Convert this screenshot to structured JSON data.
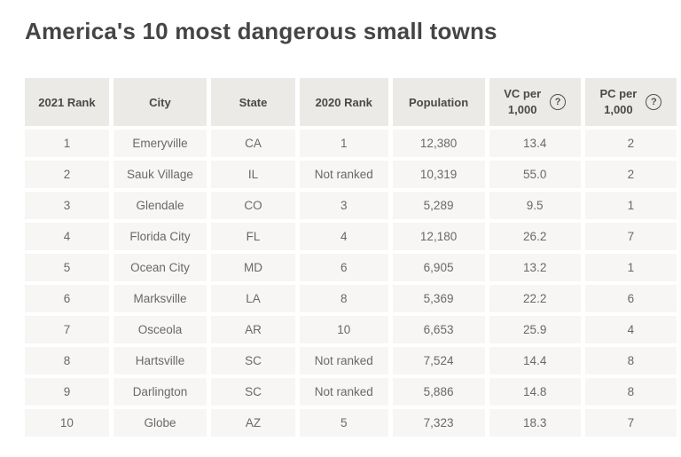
{
  "title": "America's 10 most dangerous small towns",
  "colors": {
    "page_bg": "#ffffff",
    "header_cell_bg": "#eceae7",
    "body_cell_bg": "#f7f6f4",
    "header_text": "#4b4946",
    "body_text": "#6b6865",
    "title_text": "#454545"
  },
  "icons": {
    "help_icon_glyph": "?"
  },
  "table": {
    "columns": [
      {
        "id": "rank-2021",
        "label": "2021 Rank"
      },
      {
        "id": "city",
        "label": "City"
      },
      {
        "id": "state",
        "label": "State"
      },
      {
        "id": "rank-2020",
        "label": "2020 Rank"
      },
      {
        "id": "population",
        "label": "Population"
      },
      {
        "id": "vc-per-1000",
        "label": "VC per 1,000",
        "line1": "VC per",
        "line2": "1,000",
        "help_icon": true
      },
      {
        "id": "pc-per-1000",
        "label": "PC per 1,000",
        "line1": "PC per",
        "line2": "1,000",
        "help_icon": true,
        "clipped_by_viewport": true
      }
    ],
    "rows": [
      [
        "1",
        "Emeryville",
        "CA",
        "1",
        "12,380",
        "13.4",
        "2"
      ],
      [
        "2",
        "Sauk Village",
        "IL",
        "Not ranked",
        "10,319",
        "55.0",
        "2"
      ],
      [
        "3",
        "Glendale",
        "CO",
        "3",
        "5,289",
        "9.5",
        "1"
      ],
      [
        "4",
        "Florida City",
        "FL",
        "4",
        "12,180",
        "26.2",
        "7"
      ],
      [
        "5",
        "Ocean City",
        "MD",
        "6",
        "6,905",
        "13.2",
        "1"
      ],
      [
        "6",
        "Marksville",
        "LA",
        "8",
        "5,369",
        "22.2",
        "6"
      ],
      [
        "7",
        "Osceola",
        "AR",
        "10",
        "6,653",
        "25.9",
        "4"
      ],
      [
        "8",
        "Hartsville",
        "SC",
        "Not ranked",
        "7,524",
        "14.4",
        "8"
      ],
      [
        "9",
        "Darlington",
        "SC",
        "Not ranked",
        "5,886",
        "14.8",
        "8"
      ],
      [
        "10",
        "Globe",
        "AZ",
        "5",
        "7,323",
        "18.3",
        "7"
      ]
    ],
    "notes": {
      "pc_column": "Last column is cut off by the right edge of the viewport; only the first digit of each value is visible"
    }
  }
}
